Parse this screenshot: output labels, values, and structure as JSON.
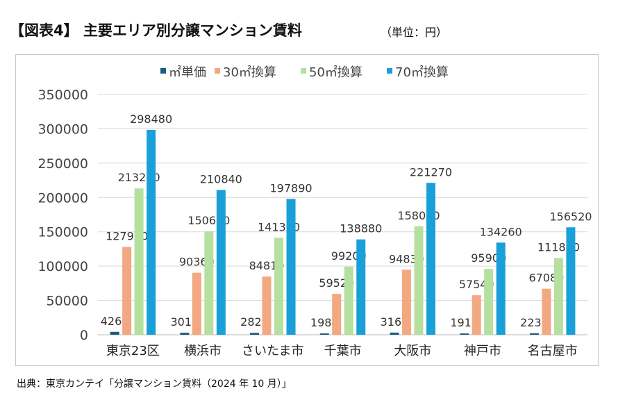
{
  "title": "【図表4】 主要エリア別分譲マンション賃料",
  "unit": "（単位：円）",
  "source": "出典：東京カンテイ「分譲マンション賃料（2024 年 10 月）」",
  "chart_data": {
    "type": "bar",
    "title": "主要エリア別分譲マンション賃料",
    "xlabel": "",
    "ylabel": "",
    "ylim": [
      0,
      350000
    ],
    "yticks": [
      0,
      50000,
      100000,
      150000,
      200000,
      250000,
      300000,
      350000
    ],
    "grid": true,
    "legend": "top",
    "categories": [
      "東京23区",
      "横浜市",
      "さいたま市",
      "千葉市",
      "大阪市",
      "神戸市",
      "名古屋市"
    ],
    "series": [
      {
        "name": "㎡単価",
        "color": "#1f5c7f",
        "values": [
          4264,
          3012,
          2827,
          1984,
          3161,
          1918,
          2236
        ]
      },
      {
        "name": "30㎡換算",
        "color": "#f2a881",
        "values": [
          127920,
          90360,
          84810,
          59520,
          94830,
          57540,
          67080
        ]
      },
      {
        "name": "50㎡換算",
        "color": "#b5e0a0",
        "values": [
          213200,
          150600,
          141350,
          99200,
          158050,
          95900,
          111800
        ]
      },
      {
        "name": "70㎡換算",
        "color": "#1aa0d8",
        "values": [
          298480,
          210840,
          197890,
          138880,
          221270,
          134260,
          156520
        ]
      }
    ]
  }
}
